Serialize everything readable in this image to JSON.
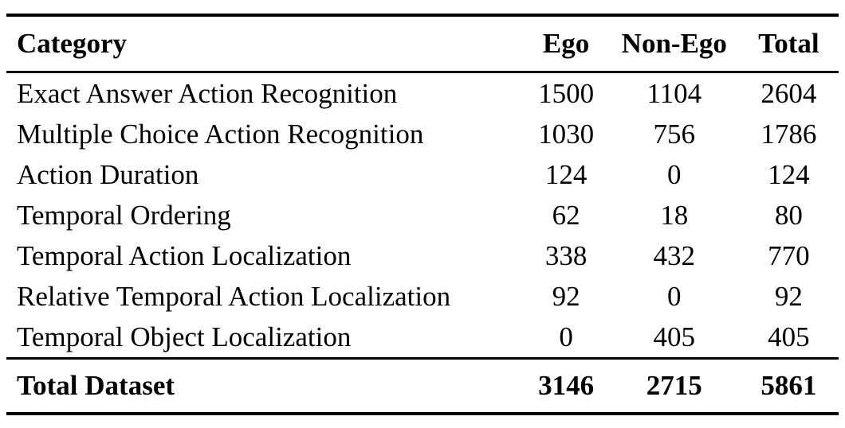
{
  "colors": {
    "background": "#ffffff",
    "text": "#000000",
    "rule": "#000000"
  },
  "table": {
    "columns": {
      "category": "Category",
      "ego": "Ego",
      "non_ego": "Non-Ego",
      "total": "Total"
    },
    "rows": [
      {
        "category": "Exact Answer Action Recognition",
        "ego": "1500",
        "non_ego": "1104",
        "total": "2604"
      },
      {
        "category": "Multiple Choice Action Recognition",
        "ego": "1030",
        "non_ego": "756",
        "total": "1786"
      },
      {
        "category": "Action Duration",
        "ego": "124",
        "non_ego": "0",
        "total": "124"
      },
      {
        "category": "Temporal Ordering",
        "ego": "62",
        "non_ego": "18",
        "total": "80"
      },
      {
        "category": "Temporal Action Localization",
        "ego": "338",
        "non_ego": "432",
        "total": "770"
      },
      {
        "category": "Relative Temporal Action Localization",
        "ego": "92",
        "non_ego": "0",
        "total": "92"
      },
      {
        "category": "Temporal Object Localization",
        "ego": "0",
        "non_ego": "405",
        "total": "405"
      }
    ],
    "footer": {
      "label": "Total Dataset",
      "ego": "3146",
      "non_ego": "2715",
      "total": "5861"
    }
  }
}
